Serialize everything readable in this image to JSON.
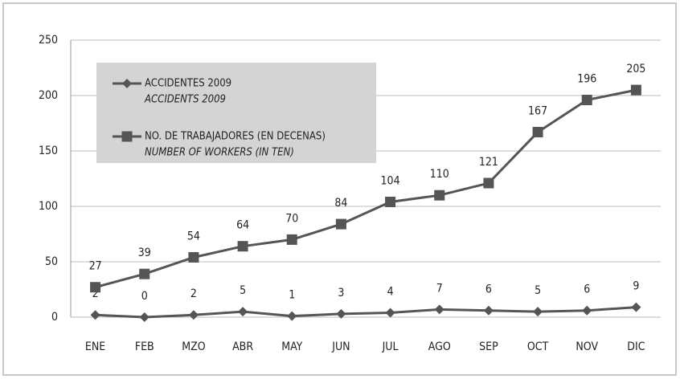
{
  "chart_data": {
    "type": "line",
    "categories": [
      "ENE",
      "FEB",
      "MZO",
      "ABR",
      "MAY",
      "JUN",
      "JUL",
      "AGO",
      "SEP",
      "OCT",
      "NOV",
      "DIC"
    ],
    "series": [
      {
        "name": "ACCIDENTES 2009",
        "name_en": "ACCIDENTS 2009",
        "color": "#555555",
        "marker": "diamond",
        "values": [
          2,
          0,
          2,
          5,
          1,
          3,
          4,
          7,
          6,
          5,
          6,
          9
        ]
      },
      {
        "name": "NO. DE TRABAJADORES (EN DECENAS)",
        "name_en": "NUMBER OF WORKERS (IN TEN)",
        "color": "#555555",
        "marker": "square",
        "values": [
          27,
          39,
          54,
          64,
          70,
          84,
          104,
          110,
          121,
          167,
          196,
          205
        ]
      }
    ],
    "ylim": [
      0,
      250
    ],
    "yticks": [
      0,
      50,
      100,
      150,
      200,
      250
    ],
    "grid": true,
    "legend": "top-left"
  }
}
